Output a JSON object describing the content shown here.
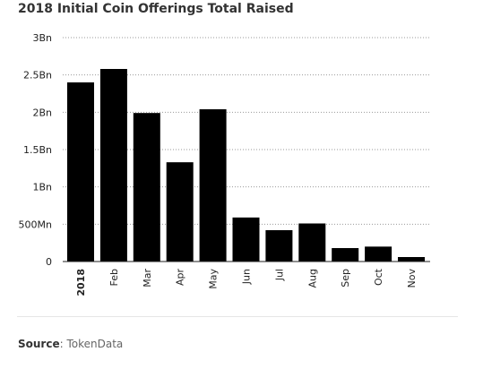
{
  "title": "2018 Initial Coin Offerings Total Raised",
  "source": {
    "label": "Source",
    "text": ": TokenData"
  },
  "chart_data": {
    "type": "bar",
    "title": "2018 Initial Coin Offerings Total Raised",
    "categories": [
      "2018",
      "Feb",
      "Mar",
      "Apr",
      "May",
      "Jun",
      "Jul",
      "Aug",
      "Sep",
      "Oct",
      "Nov"
    ],
    "values": [
      2.4,
      2.58,
      1.99,
      1.33,
      2.04,
      0.59,
      0.42,
      0.51,
      0.18,
      0.2,
      0.06
    ],
    "unit": "Bn",
    "ylim": [
      0,
      3
    ],
    "yticks": [
      0,
      0.5,
      1,
      1.5,
      2,
      2.5,
      3
    ],
    "ytick_labels": [
      "0",
      "500Mn",
      "1Bn",
      "1.5Bn",
      "2Bn",
      "2.5Bn",
      "3Bn"
    ],
    "xlabel": "",
    "ylabel": "",
    "grid": true,
    "bar_color": "#000000",
    "bold_categories": [
      "2018"
    ]
  }
}
